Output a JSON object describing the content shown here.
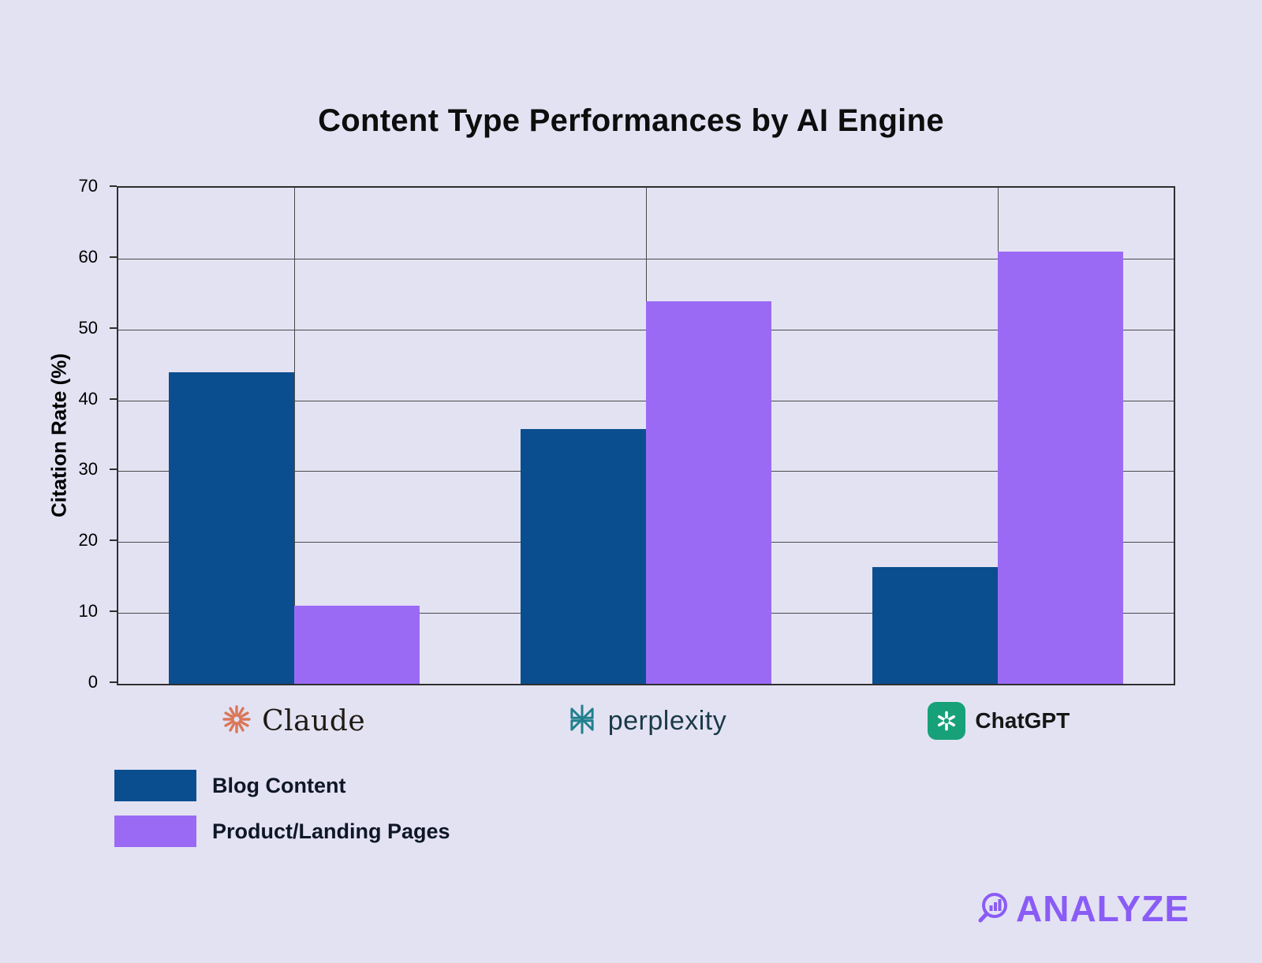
{
  "title": "Content Type Performances by AI Engine",
  "chart_data": {
    "type": "bar",
    "title": "Content Type Performances by AI Engine",
    "categories": [
      "Claude",
      "perplexity",
      "ChatGPT"
    ],
    "series": [
      {
        "name": "Blog Content",
        "color": "#0b4e8f",
        "values": [
          44,
          36,
          16.5
        ]
      },
      {
        "name": "Product/Landing Pages",
        "color": "#9b6af5",
        "values": [
          11,
          54,
          61
        ]
      }
    ],
    "xlabel": "",
    "ylabel": "Citation Rate (%)",
    "ylim": [
      0,
      70
    ],
    "ytick_step": 10,
    "yticks": [
      0,
      10,
      20,
      30,
      40,
      50,
      60,
      70
    ],
    "grid": true,
    "legend_position": "bottom-left"
  },
  "legend": {
    "items": [
      {
        "label": "Blog Content",
        "color": "#0b4e8f"
      },
      {
        "label": "Product/Landing Pages",
        "color": "#9b6af5"
      }
    ]
  },
  "category_brands": [
    {
      "name": "Claude",
      "icon": "claude-starburst-icon",
      "icon_color": "#d97757"
    },
    {
      "name": "perplexity",
      "icon": "perplexity-knot-icon",
      "icon_color": "#20808d"
    },
    {
      "name": "ChatGPT",
      "icon": "chatgpt-logo-icon",
      "icon_color": "#17a179"
    }
  ],
  "footer": {
    "brand": "ANALYZE",
    "color": "#8a5cf6"
  },
  "colors": {
    "background": "#e3e2f3",
    "grid": "#4a4a4a",
    "axis_text": "#000000"
  }
}
